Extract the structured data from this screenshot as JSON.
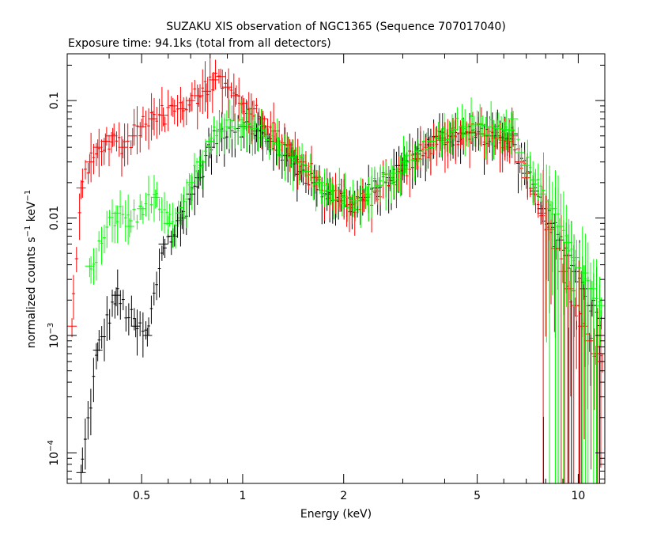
{
  "chart_data": {
    "type": "scatter",
    "title": "SUZAKU XIS observation of NGC1365 (Sequence 707017040)",
    "subtitle": "Exposure time: 94.1ks (total from all detectors)",
    "xlabel": "Energy (keV)",
    "ylabel_base": "normalized counts s",
    "ylabel_exp1": "−1",
    "ylabel_mid": " keV",
    "ylabel_exp2": "−1",
    "x_scale": "log",
    "y_scale": "log",
    "xlim": [
      0.3,
      12
    ],
    "ylim": [
      5.5e-05,
      0.25
    ],
    "x_ticks": [
      {
        "value": 0.5,
        "label": "0.5"
      },
      {
        "value": 1,
        "label": "1"
      },
      {
        "value": 2,
        "label": "2"
      },
      {
        "value": 5,
        "label": "5"
      },
      {
        "value": 10,
        "label": "10"
      }
    ],
    "y_ticks": [
      {
        "value": 0.1,
        "base": "0.1",
        "exp": ""
      },
      {
        "value": 0.01,
        "base": "0.01",
        "exp": ""
      },
      {
        "value": 0.001,
        "base": "10",
        "exp": "−3"
      },
      {
        "value": 0.0001,
        "base": "10",
        "exp": "−4"
      }
    ],
    "grid": false,
    "legend": "none",
    "series": [
      {
        "color": "#000000",
        "points": [
          [
            0.33,
            6.8e-05
          ],
          [
            0.37,
            0.00075
          ],
          [
            0.42,
            0.0022
          ],
          [
            0.48,
            0.0012
          ],
          [
            0.52,
            0.001
          ],
          [
            0.58,
            0.006
          ],
          [
            0.62,
            0.007
          ],
          [
            0.66,
            0.01
          ],
          [
            0.7,
            0.016
          ],
          [
            0.74,
            0.022
          ],
          [
            0.8,
            0.04
          ],
          [
            0.86,
            0.055
          ],
          [
            0.92,
            0.06
          ],
          [
            1.0,
            0.06
          ],
          [
            1.1,
            0.055
          ],
          [
            1.2,
            0.045
          ],
          [
            1.35,
            0.034
          ],
          [
            1.5,
            0.025
          ],
          [
            1.65,
            0.02
          ],
          [
            1.8,
            0.016
          ],
          [
            1.95,
            0.015
          ],
          [
            2.1,
            0.013
          ],
          [
            2.3,
            0.015
          ],
          [
            2.5,
            0.018
          ],
          [
            2.75,
            0.022
          ],
          [
            3.0,
            0.028
          ],
          [
            3.3,
            0.035
          ],
          [
            3.6,
            0.042
          ],
          [
            3.9,
            0.048
          ],
          [
            4.2,
            0.05
          ],
          [
            4.5,
            0.052
          ],
          [
            4.8,
            0.053
          ],
          [
            5.1,
            0.052
          ],
          [
            5.4,
            0.05
          ],
          [
            5.7,
            0.05
          ],
          [
            6.0,
            0.048
          ],
          [
            6.2,
            0.047
          ],
          [
            6.4,
            0.052
          ],
          [
            6.7,
            0.03
          ],
          [
            7.0,
            0.024
          ],
          [
            7.4,
            0.017
          ],
          [
            7.8,
            0.012
          ],
          [
            8.3,
            0.009
          ],
          [
            8.8,
            0.0065
          ],
          [
            9.3,
            0.0048
          ],
          [
            9.8,
            0.0035
          ],
          [
            10.4,
            0.0025
          ],
          [
            11.0,
            0.0018
          ],
          [
            11.7,
            0.0014
          ]
        ]
      },
      {
        "color": "#ff0000",
        "points": [
          [
            0.31,
            0.0012
          ],
          [
            0.33,
            0.018
          ],
          [
            0.35,
            0.03
          ],
          [
            0.37,
            0.04
          ],
          [
            0.39,
            0.045
          ],
          [
            0.41,
            0.05
          ],
          [
            0.44,
            0.04
          ],
          [
            0.47,
            0.05
          ],
          [
            0.5,
            0.06
          ],
          [
            0.54,
            0.07
          ],
          [
            0.58,
            0.075
          ],
          [
            0.62,
            0.09
          ],
          [
            0.66,
            0.085
          ],
          [
            0.7,
            0.1
          ],
          [
            0.74,
            0.11
          ],
          [
            0.78,
            0.12
          ],
          [
            0.82,
            0.15
          ],
          [
            0.86,
            0.16
          ],
          [
            0.9,
            0.13
          ],
          [
            0.95,
            0.11
          ],
          [
            1.0,
            0.095
          ],
          [
            1.07,
            0.085
          ],
          [
            1.15,
            0.07
          ],
          [
            1.25,
            0.055
          ],
          [
            1.37,
            0.042
          ],
          [
            1.5,
            0.03
          ],
          [
            1.65,
            0.022
          ],
          [
            1.8,
            0.017
          ],
          [
            1.95,
            0.014
          ],
          [
            2.1,
            0.013
          ],
          [
            2.3,
            0.014
          ],
          [
            2.5,
            0.017
          ],
          [
            2.75,
            0.021
          ],
          [
            3.0,
            0.026
          ],
          [
            3.3,
            0.032
          ],
          [
            3.6,
            0.04
          ],
          [
            3.9,
            0.046
          ],
          [
            4.2,
            0.05
          ],
          [
            4.5,
            0.053
          ],
          [
            4.8,
            0.054
          ],
          [
            5.1,
            0.052
          ],
          [
            5.4,
            0.05
          ],
          [
            5.7,
            0.048
          ],
          [
            6.0,
            0.046
          ],
          [
            6.2,
            0.045
          ],
          [
            6.4,
            0.05
          ],
          [
            6.7,
            0.03
          ],
          [
            7.0,
            0.022
          ],
          [
            7.4,
            0.016
          ],
          [
            7.8,
            0.011
          ],
          [
            8.2,
            0.008
          ],
          [
            8.6,
            0.0055
          ],
          [
            9.0,
            0.0035
          ],
          [
            9.4,
            0.0025
          ],
          [
            9.8,
            0.0018
          ],
          [
            10.3,
            0.0012
          ],
          [
            10.8,
            0.0009
          ],
          [
            11.3,
            0.0007
          ],
          [
            11.8,
            0.0006
          ]
        ]
      },
      {
        "color": "#00ff00",
        "points": [
          [
            0.35,
            0.0039
          ],
          [
            0.42,
            0.011
          ],
          [
            0.46,
            0.0085
          ],
          [
            0.5,
            0.012
          ],
          [
            0.55,
            0.015
          ],
          [
            0.6,
            0.009
          ],
          [
            0.65,
            0.011
          ],
          [
            0.7,
            0.02
          ],
          [
            0.75,
            0.03
          ],
          [
            0.8,
            0.045
          ],
          [
            0.86,
            0.055
          ],
          [
            0.92,
            0.06
          ],
          [
            1.0,
            0.062
          ],
          [
            1.08,
            0.058
          ],
          [
            1.17,
            0.05
          ],
          [
            1.28,
            0.042
          ],
          [
            1.4,
            0.033
          ],
          [
            1.55,
            0.025
          ],
          [
            1.7,
            0.02
          ],
          [
            1.85,
            0.017
          ],
          [
            2.0,
            0.015
          ],
          [
            2.15,
            0.014
          ],
          [
            2.35,
            0.016
          ],
          [
            2.55,
            0.019
          ],
          [
            2.8,
            0.024
          ],
          [
            3.05,
            0.03
          ],
          [
            3.35,
            0.037
          ],
          [
            3.65,
            0.045
          ],
          [
            3.95,
            0.052
          ],
          [
            4.25,
            0.057
          ],
          [
            4.55,
            0.06
          ],
          [
            4.85,
            0.062
          ],
          [
            5.15,
            0.062
          ],
          [
            5.45,
            0.06
          ],
          [
            5.75,
            0.058
          ],
          [
            6.05,
            0.057
          ],
          [
            6.25,
            0.056
          ],
          [
            6.4,
            0.07
          ],
          [
            6.7,
            0.036
          ],
          [
            7.0,
            0.028
          ],
          [
            7.4,
            0.021
          ],
          [
            7.8,
            0.016
          ],
          [
            8.3,
            0.012
          ],
          [
            8.8,
            0.0085
          ],
          [
            9.3,
            0.0062
          ],
          [
            9.8,
            0.0046
          ],
          [
            10.4,
            0.0034
          ],
          [
            11.0,
            0.0025
          ],
          [
            11.7,
            0.0018
          ]
        ]
      }
    ]
  }
}
